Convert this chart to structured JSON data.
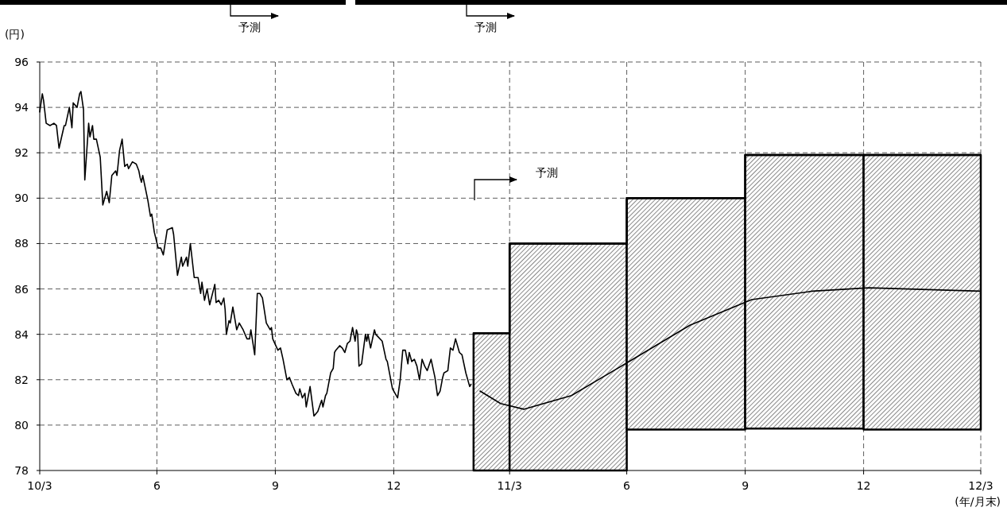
{
  "chart_data": {
    "type": "line",
    "ylabel": "(円)",
    "xlabel": "(年/月末)",
    "xlim": [
      "2010-03-31",
      "2012-03-31"
    ],
    "xticks": [
      {
        "value": "2010-03-31",
        "label": "10/3"
      },
      {
        "value": "2010-06-30",
        "label": "6"
      },
      {
        "value": "2010-09-30",
        "label": "9"
      },
      {
        "value": "2010-12-31",
        "label": "12"
      },
      {
        "value": "2011-03-31",
        "label": "11/3"
      },
      {
        "value": "2011-06-30",
        "label": "6"
      },
      {
        "value": "2011-09-30",
        "label": "9"
      },
      {
        "value": "2011-12-31",
        "label": "12"
      },
      {
        "value": "2012-03-31",
        "label": "12/3"
      }
    ],
    "ylim": [
      78,
      96
    ],
    "yticks": [
      78,
      80,
      82,
      84,
      86,
      88,
      90,
      92,
      94,
      96
    ],
    "grid": true,
    "marker": "none",
    "line_style": "solid",
    "series": [
      {
        "type": "step",
        "color": "#000000",
        "x": [
          "2011-03-03",
          "2011-03-31",
          "2011-06-30",
          "2011-09-30",
          "2011-12-31",
          "2012-03-31"
        ],
        "values": [
          84.05,
          88,
          90,
          91.9,
          91.9,
          91.9
        ],
        "lower": [
          78,
          78,
          79.8,
          79.85,
          79.8,
          79.8
        ],
        "upper": [
          84.05,
          88,
          90,
          91.9,
          91.9,
          91.9
        ]
      },
      {
        "color": "#000000",
        "x": [
          "2010-03-31",
          "2010-04-02",
          "2010-04-03",
          "2010-04-05",
          "2010-04-08",
          "2010-04-11",
          "2010-04-13",
          "2010-04-15",
          "2010-04-19",
          "2010-04-20",
          "2010-04-23",
          "2010-04-25",
          "2010-04-26",
          "2010-04-29",
          "2010-05-01",
          "2010-05-02",
          "2010-05-04",
          "2010-05-05",
          "2010-05-08",
          "2010-05-09",
          "2010-05-11",
          "2010-05-12",
          "2010-05-14",
          "2010-05-17",
          "2010-05-19",
          "2010-05-22",
          "2010-05-24",
          "2010-05-26",
          "2010-05-29",
          "2010-05-30",
          "2010-06-01",
          "2010-06-03",
          "2010-06-05",
          "2010-06-07",
          "2010-06-08",
          "2010-06-11",
          "2010-06-14",
          "2010-06-16",
          "2010-06-17",
          "2010-06-18",
          "2010-06-19",
          "2010-06-23",
          "2010-06-25",
          "2010-06-26",
          "2010-06-28",
          "2010-07-01",
          "2010-07-03",
          "2010-07-05",
          "2010-07-08",
          "2010-07-12",
          "2010-07-13",
          "2010-07-16",
          "2010-07-19",
          "2010-07-20",
          "2010-07-23",
          "2010-07-24",
          "2010-07-26",
          "2010-07-29",
          "2010-08-01",
          "2010-08-03",
          "2010-08-04",
          "2010-08-06",
          "2010-08-08",
          "2010-08-10",
          "2010-08-14",
          "2010-08-15",
          "2010-08-17",
          "2010-08-19",
          "2010-08-21",
          "2010-08-22",
          "2010-08-23",
          "2010-08-25",
          "2010-08-26",
          "2010-08-28",
          "2010-08-31",
          "2010-09-02",
          "2010-09-04",
          "2010-09-05",
          "2010-09-08",
          "2010-09-10",
          "2010-09-11",
          "2010-09-14",
          "2010-09-16",
          "2010-09-18",
          "2010-09-20",
          "2010-09-23",
          "2010-09-26",
          "2010-09-27",
          "2010-09-28",
          "2010-10-02",
          "2010-10-04",
          "2010-10-06",
          "2010-10-09",
          "2010-10-11",
          "2010-10-13",
          "2010-10-16",
          "2010-10-18",
          "2010-10-19",
          "2010-10-21",
          "2010-10-23",
          "2010-10-24",
          "2010-10-27",
          "2010-10-30",
          "2010-11-02",
          "2010-11-05",
          "2010-11-06",
          "2010-11-08",
          "2010-11-09",
          "2010-11-12",
          "2010-11-14",
          "2010-11-15",
          "2010-11-16",
          "2010-11-19",
          "2010-11-21",
          "2010-11-23",
          "2010-11-25",
          "2010-11-27",
          "2010-11-29",
          "2010-12-01",
          "2010-12-02",
          "2010-12-03",
          "2010-12-04",
          "2010-12-06",
          "2010-12-09",
          "2010-12-10",
          "2010-12-11",
          "2010-12-13",
          "2010-12-16",
          "2010-12-17",
          "2010-12-22",
          "2010-12-25",
          "2010-12-26",
          "2010-12-30",
          "2011-01-03",
          "2011-01-05",
          "2011-01-07",
          "2011-01-09",
          "2011-01-11",
          "2011-01-12",
          "2011-01-14",
          "2011-01-16",
          "2011-01-18",
          "2011-01-20",
          "2011-01-22",
          "2011-01-24",
          "2011-01-26",
          "2011-01-29",
          "2011-02-01",
          "2011-02-03",
          "2011-02-05",
          "2011-02-07",
          "2011-02-08",
          "2011-02-11",
          "2011-02-13",
          "2011-02-15",
          "2011-02-17",
          "2011-02-20",
          "2011-02-22",
          "2011-02-25",
          "2011-02-28",
          "2011-03-01"
        ],
        "values": [
          93.8,
          94.6,
          94.3,
          93.3,
          93.2,
          93.3,
          93.2,
          92.2,
          93.2,
          93.2,
          94,
          93.1,
          94.2,
          94,
          94.6,
          94.7,
          93.9,
          90.8,
          93.3,
          92.7,
          93.2,
          92.6,
          92.6,
          91.8,
          89.7,
          90.3,
          89.8,
          91,
          91.2,
          91,
          92.1,
          92.6,
          91.4,
          91.5,
          91.3,
          91.6,
          91.5,
          91.2,
          90.9,
          90.7,
          91,
          89.9,
          89.2,
          89.3,
          88.5,
          87.8,
          87.8,
          87.5,
          88.6,
          88.7,
          88.4,
          86.6,
          87.4,
          87,
          87.4,
          87,
          88,
          86.5,
          86.5,
          85.8,
          86.3,
          85.5,
          86,
          85.3,
          86.2,
          85.4,
          85.5,
          85.3,
          85.6,
          85.1,
          84,
          84.6,
          84.5,
          85.2,
          84.2,
          84.5,
          84.3,
          84.2,
          83.8,
          83.8,
          84.2,
          83.1,
          85.8,
          85.8,
          85.6,
          84.5,
          84.2,
          84.3,
          83.8,
          83.3,
          83.4,
          82.9,
          82,
          82.1,
          81.8,
          81.4,
          81.3,
          81.6,
          81.2,
          81.4,
          80.8,
          81.7,
          80.4,
          80.6,
          81.1,
          80.8,
          81.3,
          81.4,
          82.3,
          82.5,
          83.2,
          83.3,
          83.5,
          83.4,
          83.2,
          83.6,
          83.7,
          84.3,
          83.7,
          84.2,
          84,
          82.6,
          82.7,
          84,
          83.7,
          84,
          83.4,
          84.2,
          84,
          83.7,
          82.9,
          82.8,
          81.6,
          81.2,
          82,
          83.3,
          83.3,
          82.7,
          83.2,
          82.8,
          82.9,
          82.6,
          82,
          82.9,
          82.6,
          82.4,
          82.9,
          82.1,
          81.3,
          81.5,
          82.1,
          82.3,
          82.4,
          83.4,
          83.3,
          83.8,
          83.2,
          83.1,
          82.3,
          81.7,
          81.8
        ]
      },
      {
        "color": "#000000",
        "x": [
          "2011-03-08",
          "2011-03-24",
          "2011-04-11",
          "2011-05-18",
          "2011-07-03",
          "2011-08-18",
          "2011-10-05",
          "2011-11-21",
          "2012-01-04",
          "2012-03-31"
        ],
        "values": [
          81.5,
          80.95,
          80.7,
          81.3,
          82.84,
          84.4,
          85.53,
          85.9,
          86.05,
          85.9
        ]
      }
    ],
    "annotations": [
      "予測",
      "予測",
      "予測"
    ]
  }
}
